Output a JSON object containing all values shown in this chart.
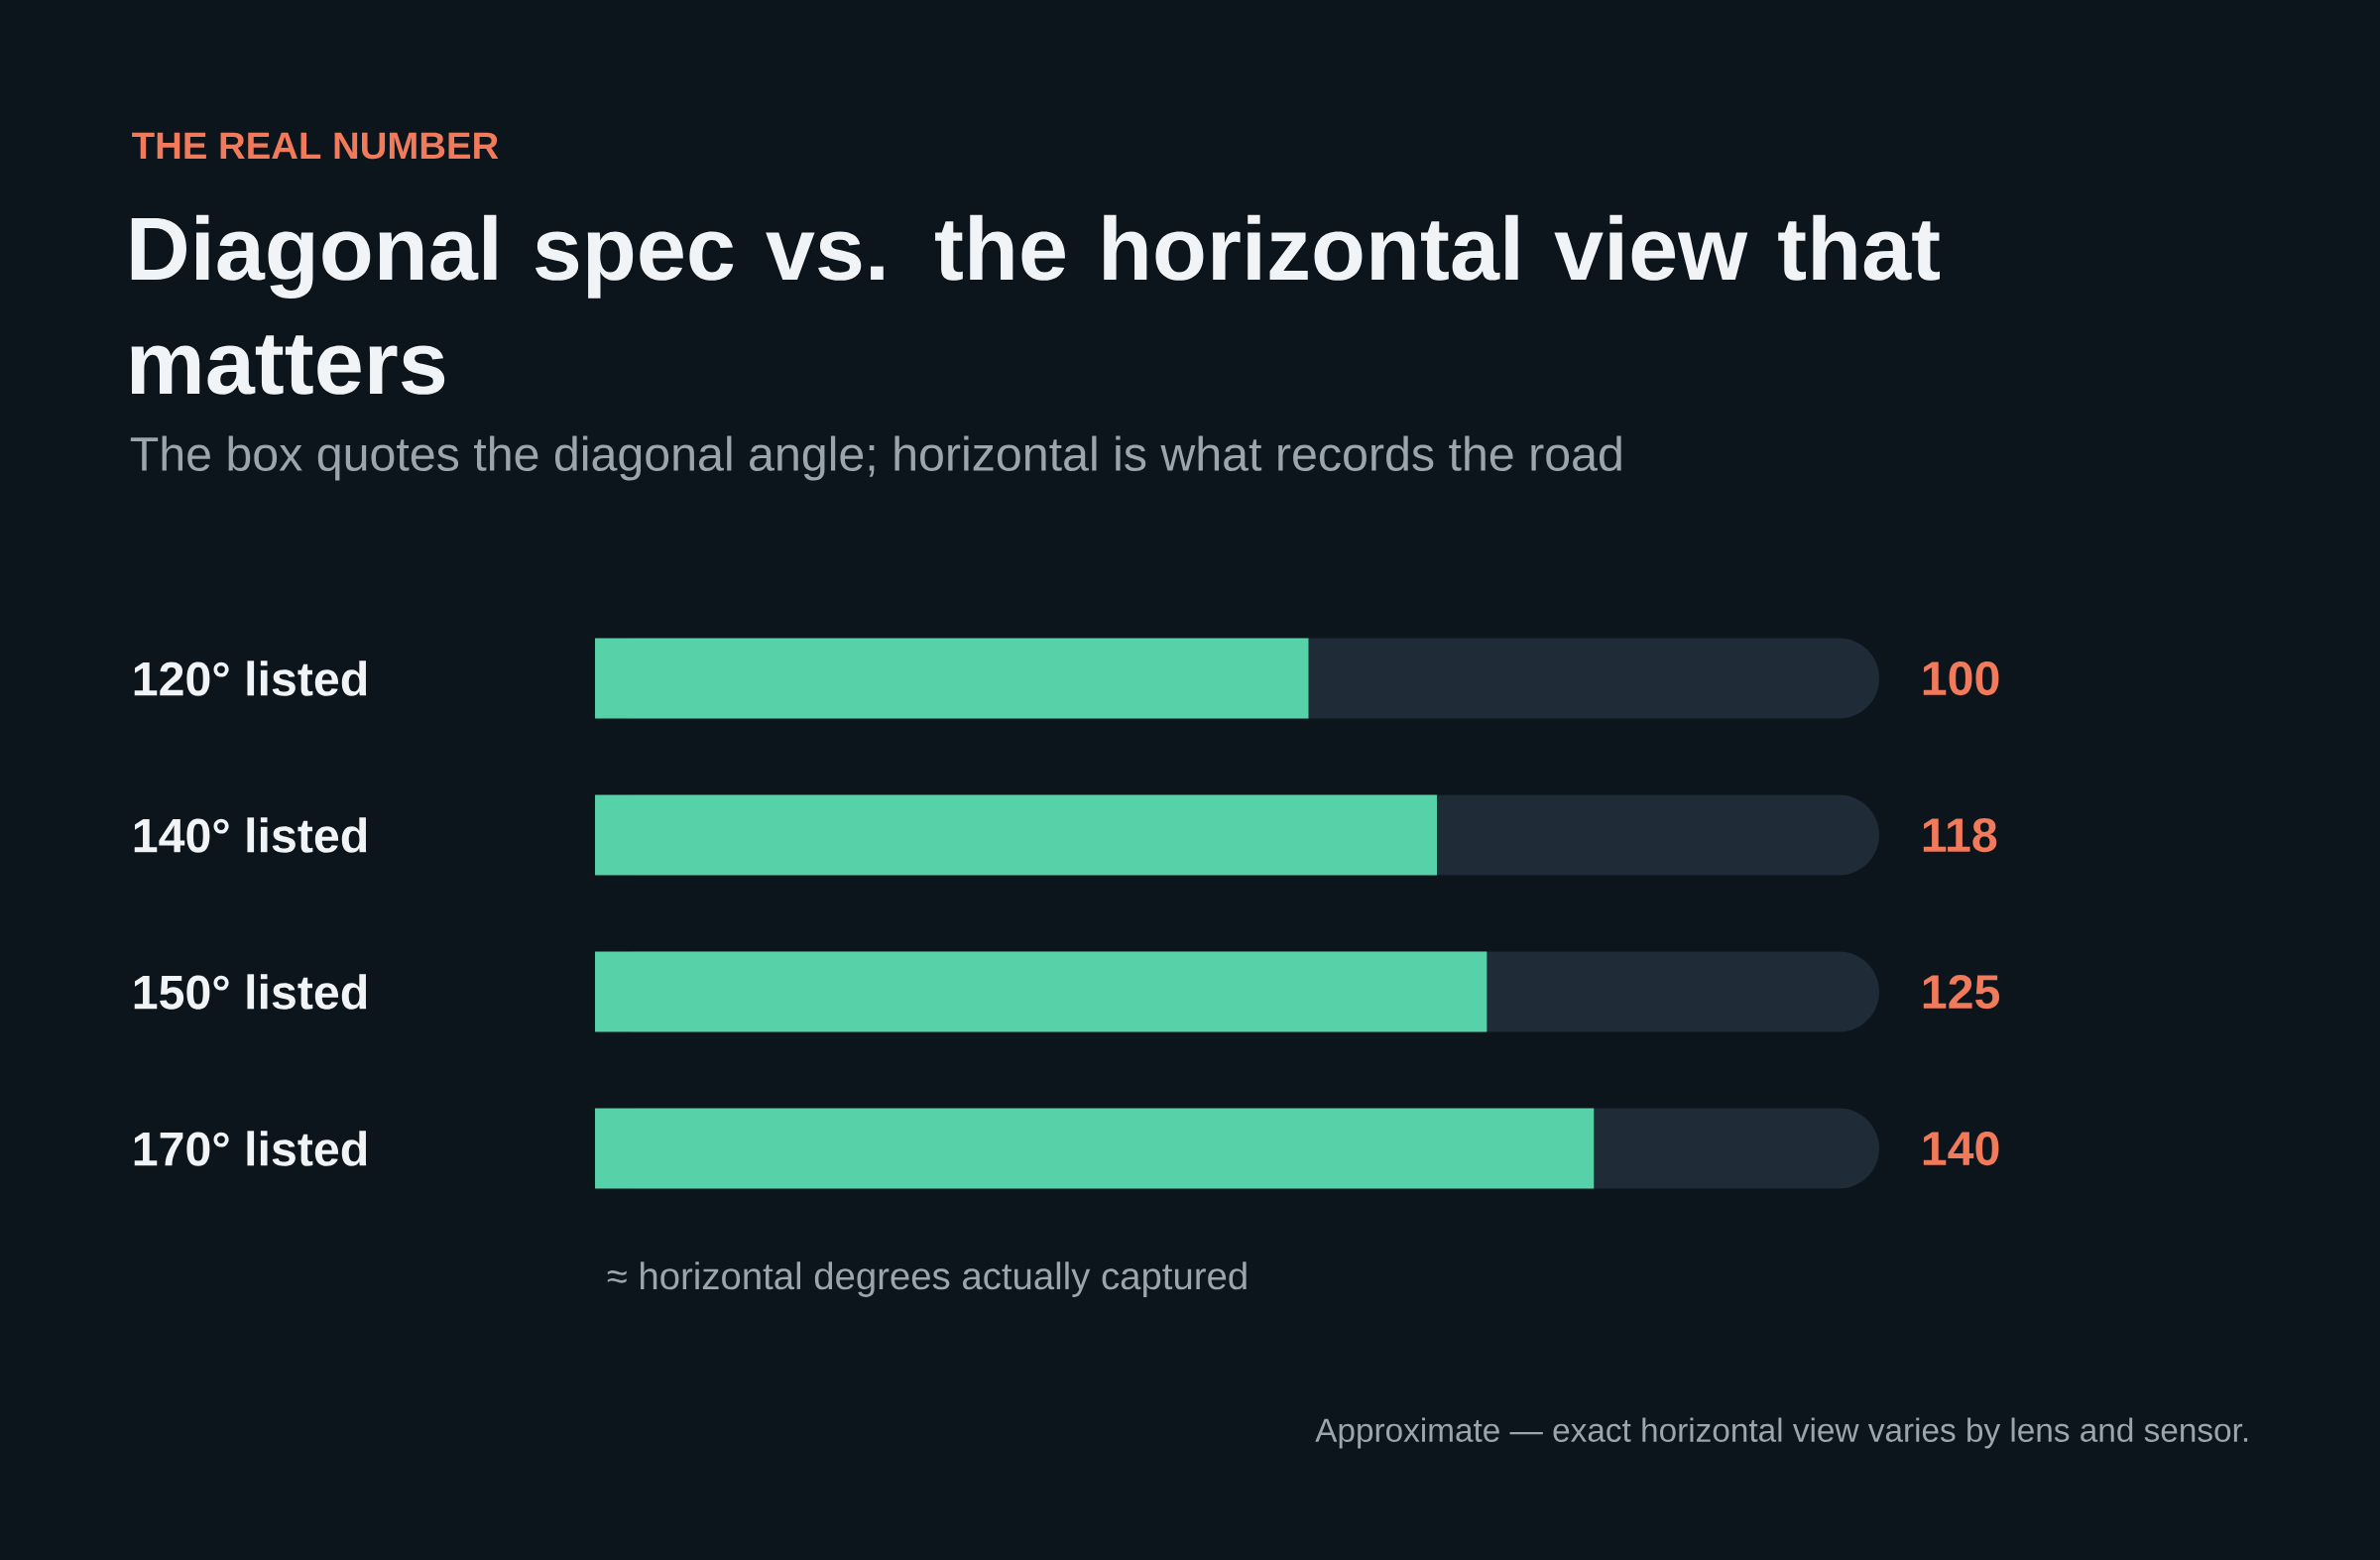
{
  "chart_data": {
    "type": "bar",
    "orientation": "horizontal",
    "title": "Diagonal spec vs. the horizontal view that matters",
    "subtitle": "The box quotes the diagonal angle; horizontal is what records the road",
    "categories": [
      "120° listed",
      "140° listed",
      "150° listed",
      "170° listed"
    ],
    "values": [
      100,
      118,
      125,
      140
    ],
    "color": "#56d1a8",
    "xlim": [
      0,
      180
    ],
    "data_labels": true,
    "tick_labels": "y",
    "annotations": [
      "THE REAL NUMBER",
      "≈ horizontal degrees actually captured",
      "Approximate — exact horizontal view varies by lens and sensor."
    ]
  }
}
